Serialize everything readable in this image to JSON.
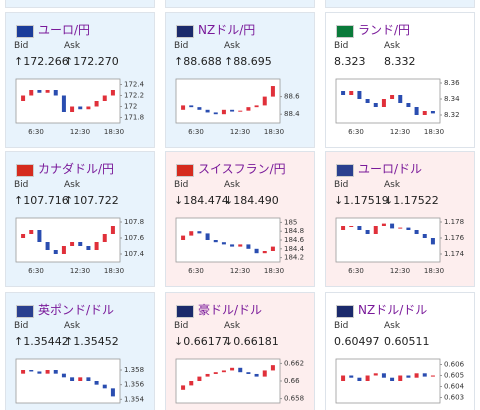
{
  "labels": {
    "bid": "Bid",
    "ask": "Ask"
  },
  "x_labels": [
    "6:30",
    "12:30",
    "18:30"
  ],
  "tiles": [
    {
      "pair": "ユーロ/円",
      "bid": "↑172.266",
      "ask": "↑172.270",
      "bg": "#e8f3fc",
      "ylim": [
        171.7,
        172.5
      ],
      "yticks": [
        172.4,
        172.2,
        172,
        171.8
      ],
      "close": [
        172.1,
        172.2,
        172.3,
        172.25,
        172.3,
        172.2,
        171.9,
        172.0,
        171.95,
        172.0,
        172.1,
        172.2,
        172.3
      ]
    },
    {
      "pair": "NZドル/円",
      "bid": "↑88.688",
      "ask": "↑88.695",
      "bg": "#e8f3fc",
      "ylim": [
        88.3,
        88.8
      ],
      "yticks": [
        88.6,
        88.4
      ],
      "close": [
        88.45,
        88.5,
        88.48,
        88.45,
        88.42,
        88.4,
        88.45,
        88.43,
        88.44,
        88.48,
        88.5,
        88.6,
        88.72
      ]
    },
    {
      "pair": "ランド/円",
      "bid": "8.323",
      "ask": "8.332",
      "bg": "#ffffff",
      "ylim": [
        8.31,
        8.365
      ],
      "yticks": [
        8.36,
        8.34,
        8.32
      ],
      "close": [
        8.35,
        8.345,
        8.35,
        8.34,
        8.335,
        8.33,
        8.34,
        8.345,
        8.335,
        8.33,
        8.32,
        8.325,
        8.322
      ]
    },
    {
      "pair": "カナダドル/円",
      "bid": "↑107.716",
      "ask": "↑107.722",
      "bg": "#e8f3fc",
      "ylim": [
        107.3,
        107.85
      ],
      "yticks": [
        107.8,
        107.6,
        107.4
      ],
      "close": [
        107.6,
        107.65,
        107.7,
        107.55,
        107.45,
        107.4,
        107.5,
        107.55,
        107.5,
        107.45,
        107.55,
        107.65,
        107.75
      ]
    },
    {
      "pair": "スイスフラン/円",
      "bid": "↓184.474",
      "ask": "↓184.490",
      "bg": "#fdeeee",
      "ylim": [
        184.1,
        185.1
      ],
      "yticks": [
        185,
        184.8,
        184.6,
        184.4,
        184.2
      ],
      "close": [
        184.6,
        184.7,
        184.8,
        184.75,
        184.6,
        184.55,
        184.5,
        184.45,
        184.5,
        184.4,
        184.3,
        184.35,
        184.45
      ]
    },
    {
      "pair": "ユーロ/ドル",
      "bid": "↓1.17519",
      "ask": "↓1.17522",
      "bg": "#fdeeee",
      "ylim": [
        1.173,
        1.1785
      ],
      "yticks": [
        1.178,
        1.176,
        1.174
      ],
      "close": [
        1.177,
        1.1775,
        1.1775,
        1.177,
        1.1765,
        1.1775,
        1.1778,
        1.1772,
        1.1773,
        1.177,
        1.1765,
        1.176,
        1.1752
      ]
    },
    {
      "pair": "英ポンド/ドル",
      "bid": "↑1.35442",
      "ask": "↑1.35452",
      "bg": "#e8f3fc",
      "ylim": [
        1.3535,
        1.3595
      ],
      "yticks": [
        1.358,
        1.356,
        1.354
      ],
      "close": [
        1.3575,
        1.358,
        1.3578,
        1.3575,
        1.358,
        1.3575,
        1.357,
        1.3565,
        1.357,
        1.3565,
        1.356,
        1.3555,
        1.3544
      ]
    },
    {
      "pair": "豪ドル/ドル",
      "bid": "↓0.66177",
      "ask": "↓0.66181",
      "bg": "#fdeeee",
      "ylim": [
        0.6575,
        0.6625
      ],
      "yticks": [
        0.662,
        0.66,
        0.658
      ],
      "close": [
        0.659,
        0.6595,
        0.66,
        0.6605,
        0.6608,
        0.661,
        0.6612,
        0.6615,
        0.661,
        0.6608,
        0.6605,
        0.6612,
        0.6618
      ]
    },
    {
      "pair": "NZドル/ドル",
      "bid": "0.60497",
      "ask": "0.60511",
      "bg": "#ffffff",
      "ylim": [
        0.6025,
        0.6065
      ],
      "yticks": [
        0.606,
        0.605,
        0.604,
        0.603
      ],
      "close": [
        0.6045,
        0.605,
        0.6048,
        0.6045,
        0.605,
        0.6052,
        0.6048,
        0.6045,
        0.605,
        0.6048,
        0.6052,
        0.6049,
        0.605
      ]
    }
  ]
}
